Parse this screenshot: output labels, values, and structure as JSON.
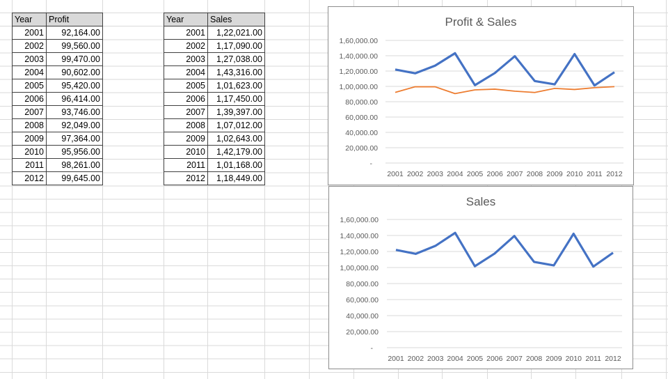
{
  "profit_table": {
    "headers": [
      "Year",
      "Profit"
    ],
    "rows": [
      [
        "2001",
        "92,164.00"
      ],
      [
        "2002",
        "99,560.00"
      ],
      [
        "2003",
        "99,470.00"
      ],
      [
        "2004",
        "90,602.00"
      ],
      [
        "2005",
        "95,420.00"
      ],
      [
        "2006",
        "96,414.00"
      ],
      [
        "2007",
        "93,746.00"
      ],
      [
        "2008",
        "92,049.00"
      ],
      [
        "2009",
        "97,364.00"
      ],
      [
        "2010",
        "95,956.00"
      ],
      [
        "2011",
        "98,261.00"
      ],
      [
        "2012",
        "99,645.00"
      ]
    ]
  },
  "sales_table": {
    "headers": [
      "Year",
      "Sales"
    ],
    "rows": [
      [
        "2001",
        "1,22,021.00"
      ],
      [
        "2002",
        "1,17,090.00"
      ],
      [
        "2003",
        "1,27,038.00"
      ],
      [
        "2004",
        "1,43,316.00"
      ],
      [
        "2005",
        "1,01,623.00"
      ],
      [
        "2006",
        "1,17,450.00"
      ],
      [
        "2007",
        "1,39,397.00"
      ],
      [
        "2008",
        "1,07,012.00"
      ],
      [
        "2009",
        "1,02,643.00"
      ],
      [
        "2010",
        "1,42,179.00"
      ],
      [
        "2011",
        "1,01,168.00"
      ],
      [
        "2012",
        "1,18,449.00"
      ]
    ]
  },
  "colors": {
    "sales": "#4472c4",
    "profit": "#ed7d31"
  },
  "chart_data": [
    {
      "type": "line",
      "title": "Profit & Sales",
      "categories": [
        "2001",
        "2002",
        "2003",
        "2004",
        "2005",
        "2006",
        "2007",
        "2008",
        "2009",
        "2010",
        "2011",
        "2012"
      ],
      "series": [
        {
          "name": "Sales",
          "color": "#4472c4",
          "values": [
            122021,
            117090,
            127038,
            143316,
            101623,
            117450,
            139397,
            107012,
            102643,
            142179,
            101168,
            118449
          ]
        },
        {
          "name": "Profit",
          "color": "#ed7d31",
          "values": [
            92164,
            99560,
            99470,
            90602,
            95420,
            96414,
            93746,
            92049,
            97364,
            95956,
            98261,
            99645
          ]
        }
      ],
      "ylim": [
        0,
        160000
      ],
      "yticks": [
        "-",
        "20,000.00",
        "40,000.00",
        "60,000.00",
        "80,000.00",
        "1,00,000.00",
        "1,20,000.00",
        "1,40,000.00",
        "1,60,000.00"
      ],
      "grid": true,
      "legend": "none"
    },
    {
      "type": "line",
      "title": "Sales",
      "categories": [
        "2001",
        "2002",
        "2003",
        "2004",
        "2005",
        "2006",
        "2007",
        "2008",
        "2009",
        "2010",
        "2011",
        "2012"
      ],
      "series": [
        {
          "name": "Sales",
          "color": "#4472c4",
          "values": [
            122021,
            117090,
            127038,
            143316,
            101623,
            117450,
            139397,
            107012,
            102643,
            142179,
            101168,
            118449
          ]
        }
      ],
      "ylim": [
        0,
        160000
      ],
      "yticks": [
        "-",
        "20,000.00",
        "40,000.00",
        "60,000.00",
        "80,000.00",
        "1,00,000.00",
        "1,20,000.00",
        "1,40,000.00",
        "1,60,000.00"
      ],
      "grid": true,
      "legend": "none"
    }
  ]
}
